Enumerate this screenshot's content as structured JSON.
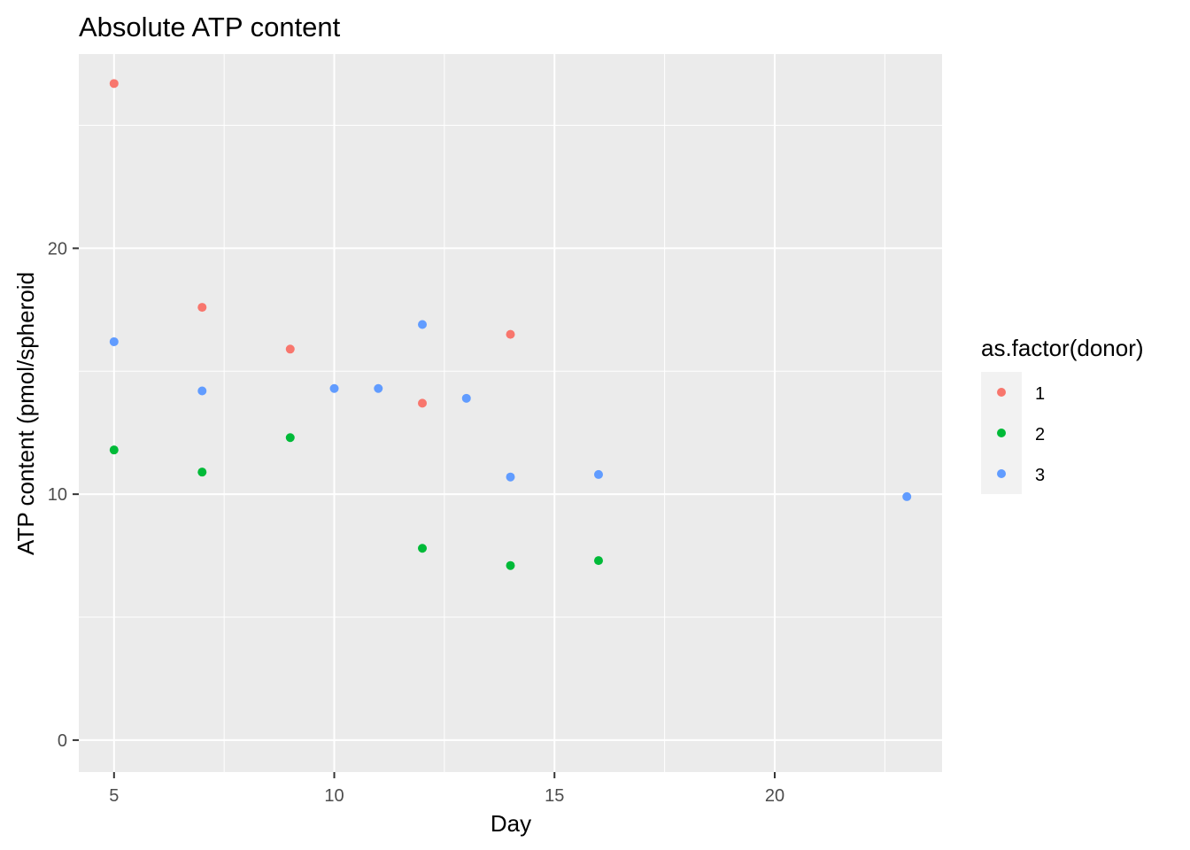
{
  "chart_data": {
    "type": "scatter",
    "title": "Absolute ATP content",
    "xlabel": "Day",
    "ylabel": "ATP content (pmol/spheroid",
    "xlim": [
      4.2,
      23.8
    ],
    "ylim": [
      -1.3,
      27.9
    ],
    "x_ticks": [
      5,
      10,
      15,
      20
    ],
    "y_ticks": [
      0,
      10,
      20
    ],
    "x_tick_labels": [
      "5",
      "10",
      "15",
      "20"
    ],
    "y_tick_labels": [
      "0",
      "10",
      "20"
    ],
    "grid": true,
    "legend": {
      "title": "as.factor(donor)",
      "placement": "right",
      "entries": [
        "1",
        "2",
        "3"
      ]
    },
    "series": [
      {
        "name": "1",
        "color": "#F8766D",
        "points": [
          {
            "x": 5,
            "y": 26.7
          },
          {
            "x": 7,
            "y": 17.6
          },
          {
            "x": 9,
            "y": 15.9
          },
          {
            "x": 12,
            "y": 13.7
          },
          {
            "x": 14,
            "y": 16.5
          }
        ]
      },
      {
        "name": "2",
        "color": "#00BA38",
        "points": [
          {
            "x": 5,
            "y": 11.8
          },
          {
            "x": 7,
            "y": 10.9
          },
          {
            "x": 9,
            "y": 12.3
          },
          {
            "x": 12,
            "y": 7.8
          },
          {
            "x": 14,
            "y": 7.1
          },
          {
            "x": 16,
            "y": 7.3
          }
        ]
      },
      {
        "name": "3",
        "color": "#619CFF",
        "points": [
          {
            "x": 5,
            "y": 16.2
          },
          {
            "x": 7,
            "y": 14.2
          },
          {
            "x": 10,
            "y": 14.3
          },
          {
            "x": 11,
            "y": 14.3
          },
          {
            "x": 12,
            "y": 16.9
          },
          {
            "x": 13,
            "y": 13.9
          },
          {
            "x": 14,
            "y": 10.7
          },
          {
            "x": 16,
            "y": 10.8
          },
          {
            "x": 23,
            "y": 9.9
          }
        ]
      }
    ]
  }
}
